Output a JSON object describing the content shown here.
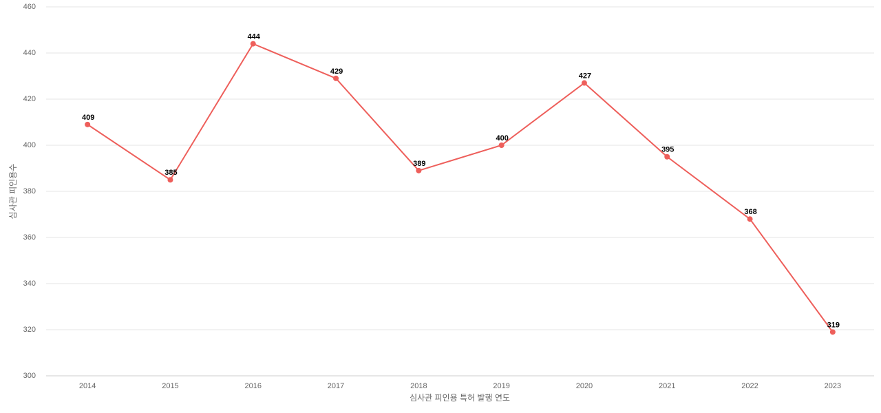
{
  "chart_data": {
    "type": "line",
    "x_label": "심사관 피인용 특허 발행 연도",
    "y_label": "심사관 피인용수",
    "categories": [
      "2014",
      "2015",
      "2016",
      "2017",
      "2018",
      "2019",
      "2020",
      "2021",
      "2022",
      "2023"
    ],
    "values": [
      409,
      385,
      444,
      429,
      389,
      400,
      427,
      395,
      368,
      319
    ],
    "color": "#ee5f5b",
    "ylim": [
      300,
      460
    ],
    "yticks": [
      300,
      320,
      340,
      360,
      380,
      400,
      420,
      440,
      460
    ],
    "grid": true
  }
}
